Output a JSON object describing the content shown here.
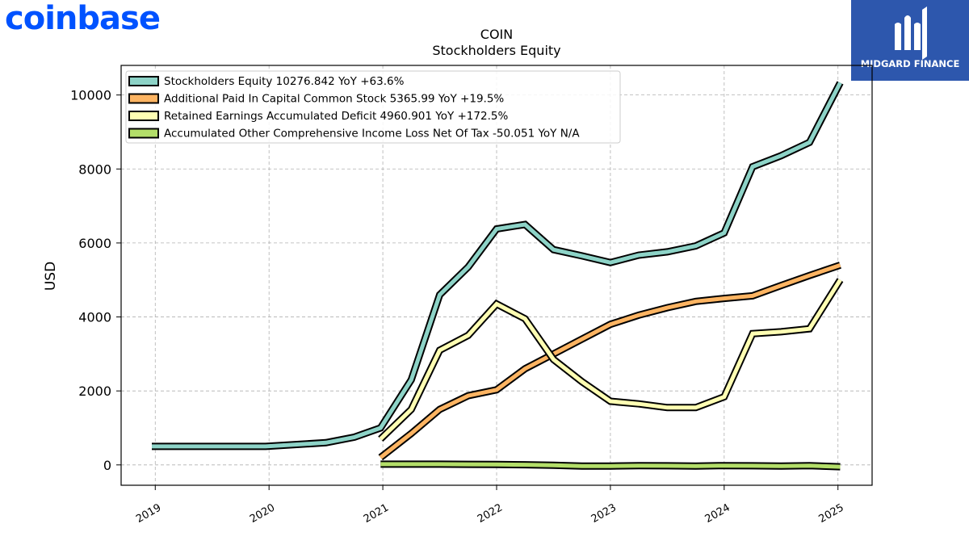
{
  "brand": {
    "name": "coinbase",
    "color": "#0052ff"
  },
  "watermark": {
    "label": "MIDGARD FINANCE",
    "bg": "#2d57ad",
    "icon": "midgard-logo-icon"
  },
  "chart_data": {
    "type": "line",
    "title": "COIN",
    "subtitle": "Stockholders  Equity",
    "xlabel": "",
    "ylabel": "USD",
    "xlim": [
      2018.7,
      2025.3
    ],
    "ylim": [
      -550,
      10800
    ],
    "yticks": [
      0,
      2000,
      4000,
      6000,
      8000,
      10000
    ],
    "xticks": [
      "2019",
      "2020",
      "2021",
      "2022",
      "2023",
      "2024",
      "2025"
    ],
    "grid": true,
    "legend_position": "top-left",
    "series": [
      {
        "name": "Stockholders Equity  10276.842 YoY +63.6%",
        "color": "#8dd3c7",
        "points": [
          [
            2018.97,
            500
          ],
          [
            2019.97,
            500
          ],
          [
            2020.5,
            600
          ],
          [
            2020.75,
            750
          ],
          [
            2020.98,
            1000
          ],
          [
            2021.25,
            2300
          ],
          [
            2021.5,
            4600
          ],
          [
            2021.75,
            5350
          ],
          [
            2022.0,
            6380
          ],
          [
            2022.25,
            6500
          ],
          [
            2022.5,
            5820
          ],
          [
            2022.75,
            5650
          ],
          [
            2023.0,
            5470
          ],
          [
            2023.25,
            5670
          ],
          [
            2023.5,
            5760
          ],
          [
            2023.75,
            5920
          ],
          [
            2024.0,
            6270
          ],
          [
            2024.25,
            8060
          ],
          [
            2024.5,
            8360
          ],
          [
            2024.75,
            8720
          ],
          [
            2025.02,
            10330
          ]
        ]
      },
      {
        "name": "Additional Paid In Capital Common Stock  5365.99 YoY +19.5%",
        "color": "#fdb462",
        "points": [
          [
            2020.98,
            200
          ],
          [
            2021.25,
            850
          ],
          [
            2021.5,
            1500
          ],
          [
            2021.75,
            1870
          ],
          [
            2022.0,
            2030
          ],
          [
            2022.25,
            2600
          ],
          [
            2022.5,
            3000
          ],
          [
            2022.75,
            3400
          ],
          [
            2023.0,
            3800
          ],
          [
            2023.25,
            4050
          ],
          [
            2023.5,
            4250
          ],
          [
            2023.75,
            4420
          ],
          [
            2024.0,
            4500
          ],
          [
            2024.25,
            4570
          ],
          [
            2024.5,
            4850
          ],
          [
            2024.75,
            5120
          ],
          [
            2025.02,
            5400
          ]
        ]
      },
      {
        "name": "Retained Earnings Accumulated Deficit  4960.901 YoY +172.5%",
        "color": "#ffffb3",
        "points": [
          [
            2020.98,
            700
          ],
          [
            2021.25,
            1500
          ],
          [
            2021.5,
            3100
          ],
          [
            2021.75,
            3500
          ],
          [
            2022.0,
            4350
          ],
          [
            2022.25,
            3950
          ],
          [
            2022.5,
            2850
          ],
          [
            2022.75,
            2250
          ],
          [
            2023.0,
            1720
          ],
          [
            2023.25,
            1650
          ],
          [
            2023.5,
            1550
          ],
          [
            2023.75,
            1550
          ],
          [
            2024.0,
            1840
          ],
          [
            2024.25,
            3550
          ],
          [
            2024.5,
            3600
          ],
          [
            2024.75,
            3680
          ],
          [
            2025.02,
            5000
          ]
        ]
      },
      {
        "name": "Accumulated Other Comprehensive Income Loss Net Of Tax  -50.051 YoY N/A",
        "color": "#b3de69",
        "points": [
          [
            2020.98,
            20
          ],
          [
            2021.25,
            20
          ],
          [
            2021.5,
            20
          ],
          [
            2021.75,
            15
          ],
          [
            2022.0,
            10
          ],
          [
            2022.25,
            5
          ],
          [
            2022.5,
            -10
          ],
          [
            2022.75,
            -30
          ],
          [
            2023.0,
            -30
          ],
          [
            2023.25,
            -20
          ],
          [
            2023.5,
            -25
          ],
          [
            2023.75,
            -30
          ],
          [
            2024.0,
            -20
          ],
          [
            2024.25,
            -25
          ],
          [
            2024.5,
            -30
          ],
          [
            2024.75,
            -20
          ],
          [
            2025.02,
            -50
          ]
        ]
      }
    ]
  }
}
